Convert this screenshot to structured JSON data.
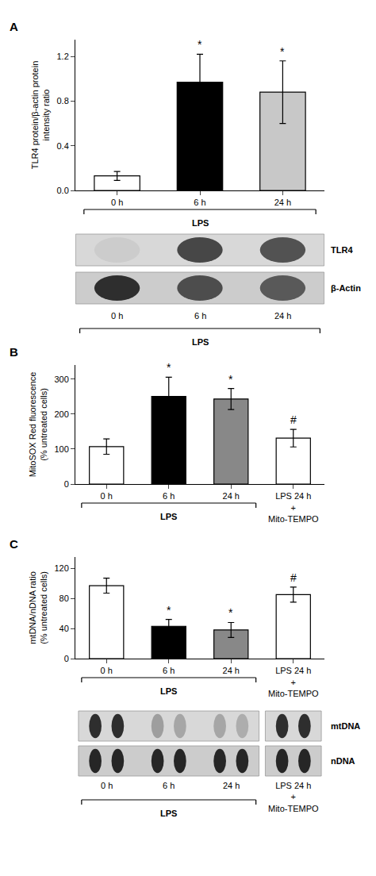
{
  "chart_data": [
    {
      "type": "bar",
      "title": "A",
      "categories": [
        "0 h",
        "6 h",
        "24 h"
      ],
      "values": [
        0.13,
        0.97,
        0.88
      ],
      "errors": [
        0.04,
        0.25,
        0.28
      ],
      "colors": [
        "white",
        "black",
        "#c8c8c8"
      ],
      "ylim": [
        0,
        1.35
      ],
      "yticks": [
        {
          "value": 0,
          "label": "0.0"
        },
        0.4,
        0.8,
        1.2
      ],
      "ylabel": "TLR4 protein/β-actin protein\nintensity ratio",
      "grid": false,
      "annotations": [
        {
          "text": "*",
          "category": "6 h"
        },
        {
          "text": "*",
          "category": "24 h"
        },
        {
          "text": "LPS",
          "categories": [
            "0 h",
            "6 h",
            "24 h"
          ]
        }
      ],
      "blot": {
        "rows": [
          "TLR4",
          "β-Actin"
        ],
        "lanes": [
          "0 h",
          "6 h",
          "24 h"
        ],
        "annotations": [
          {
            "text": "LPS",
            "lanes": [
              "0 h",
              "6 h",
              "24 h"
            ]
          }
        ]
      }
    },
    {
      "type": "bar",
      "title": "B",
      "categories": [
        "0 h",
        "6 h",
        "24 h",
        "LPS 24 h\n+\nMito-TEMPO"
      ],
      "values": [
        107,
        250,
        243,
        131
      ],
      "errors": [
        22,
        55,
        30,
        25
      ],
      "colors": [
        "white",
        "black",
        "#888888",
        "white"
      ],
      "ylim": [
        0,
        340
      ],
      "yticks": [
        0,
        100,
        200,
        300
      ],
      "ylabel": "MitoSOX Red fluorescence\n(% untreated cells)",
      "grid": false,
      "annotations": [
        {
          "text": "*",
          "category": "6 h"
        },
        {
          "text": "*",
          "category": "24 h"
        },
        {
          "text": "#",
          "category": "LPS 24 h\n+\nMito-TEMPO"
        },
        {
          "text": "LPS",
          "categories": [
            "0 h",
            "6 h",
            "24 h"
          ]
        }
      ]
    },
    {
      "type": "bar",
      "title": "C",
      "categories": [
        "0 h",
        "6 h",
        "24 h",
        "LPS 24 h\n+\nMito-TEMPO"
      ],
      "values": [
        97,
        43,
        38,
        85
      ],
      "errors": [
        10,
        9,
        10,
        10
      ],
      "colors": [
        "white",
        "black",
        "#888888",
        "white"
      ],
      "ylim": [
        0,
        135
      ],
      "yticks": [
        0,
        40,
        80,
        120
      ],
      "ylabel": "mtDNA/nDNA ratio\n(% untreated cells)",
      "grid": false,
      "annotations": [
        {
          "text": "*",
          "category": "6 h"
        },
        {
          "text": "*",
          "category": "24 h"
        },
        {
          "text": "#",
          "category": "LPS 24 h\n+\nMito-TEMPO"
        },
        {
          "text": "LPS",
          "categories": [
            "0 h",
            "6 h",
            "24 h"
          ]
        }
      ],
      "blot": {
        "rows": [
          "mtDNA",
          "nDNA"
        ],
        "lanes": [
          "0 h",
          "6 h",
          "24 h",
          "LPS 24 h\n+\nMito-TEMPO"
        ],
        "annotations": [
          {
            "text": "LPS",
            "lanes": [
              "0 h",
              "6 h",
              "24 h"
            ]
          }
        ]
      }
    }
  ]
}
